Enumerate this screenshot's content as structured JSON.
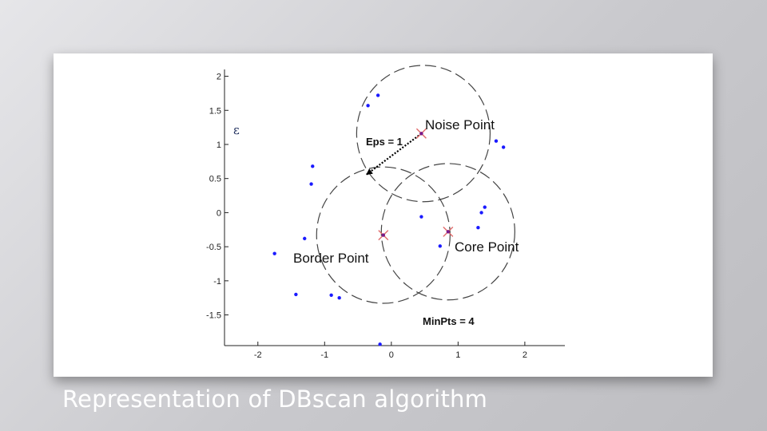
{
  "caption": "Representation of DBscan algorithm",
  "chart_data": {
    "type": "scatter",
    "title": "",
    "xlabel": "",
    "ylabel": "",
    "xlim": [
      -2.5,
      2.6
    ],
    "ylim": [
      -1.95,
      2.1
    ],
    "xticks": [
      -2,
      -1,
      0,
      1,
      2
    ],
    "yticks": [
      -1.5,
      -1,
      -0.5,
      0,
      0.5,
      1,
      1.5,
      2
    ],
    "ytick_labels": [
      "-1.5",
      "-1",
      "-0.5",
      "0",
      "0.5",
      "1",
      "1.5",
      "2"
    ],
    "xtick_labels": [
      "-2",
      "-1",
      "0",
      "1",
      "2"
    ],
    "points": [
      {
        "x": -0.35,
        "y": 1.57
      },
      {
        "x": -0.2,
        "y": 1.72
      },
      {
        "x": 1.57,
        "y": 1.05
      },
      {
        "x": 1.68,
        "y": 0.96
      },
      {
        "x": -1.18,
        "y": 0.68
      },
      {
        "x": -1.2,
        "y": 0.42
      },
      {
        "x": 0.45,
        "y": -0.06
      },
      {
        "x": 1.35,
        "y": 0.0
      },
      {
        "x": 1.4,
        "y": 0.08
      },
      {
        "x": 1.3,
        "y": -0.22
      },
      {
        "x": -1.3,
        "y": -0.38
      },
      {
        "x": -1.75,
        "y": -0.6
      },
      {
        "x": 0.73,
        "y": -0.49
      },
      {
        "x": -1.43,
        "y": -1.2
      },
      {
        "x": -0.9,
        "y": -1.21
      },
      {
        "x": -0.78,
        "y": -1.25
      },
      {
        "x": -0.17,
        "y": -1.93
      }
    ],
    "special_points": [
      {
        "name": "Noise Point",
        "x": 0.45,
        "y": 1.16
      },
      {
        "name": "Border Point",
        "x": -0.12,
        "y": -0.33
      },
      {
        "name": "Core Point",
        "x": 0.85,
        "y": -0.28
      }
    ],
    "circles": [
      {
        "cx": 0.48,
        "cy": 1.16,
        "r": 1
      },
      {
        "cx": -0.12,
        "cy": -0.33,
        "r": 1
      },
      {
        "cx": 0.85,
        "cy": -0.28,
        "r": 1
      }
    ],
    "arrow": {
      "from": [
        0.45,
        1.16
      ],
      "to": [
        -0.37,
        0.56
      ]
    },
    "labels": {
      "noise": "Noise Point",
      "border": "Border Point",
      "core": "Core Point",
      "eps": "Eps = 1",
      "minpts": "MinPts = 4",
      "epsilon_symbol": "ε"
    },
    "colors": {
      "point": "#1a1aff",
      "marker": "#e06a6a",
      "marker_center": "#7a1a8a",
      "circle": "#444444",
      "axis": "#222222"
    }
  }
}
